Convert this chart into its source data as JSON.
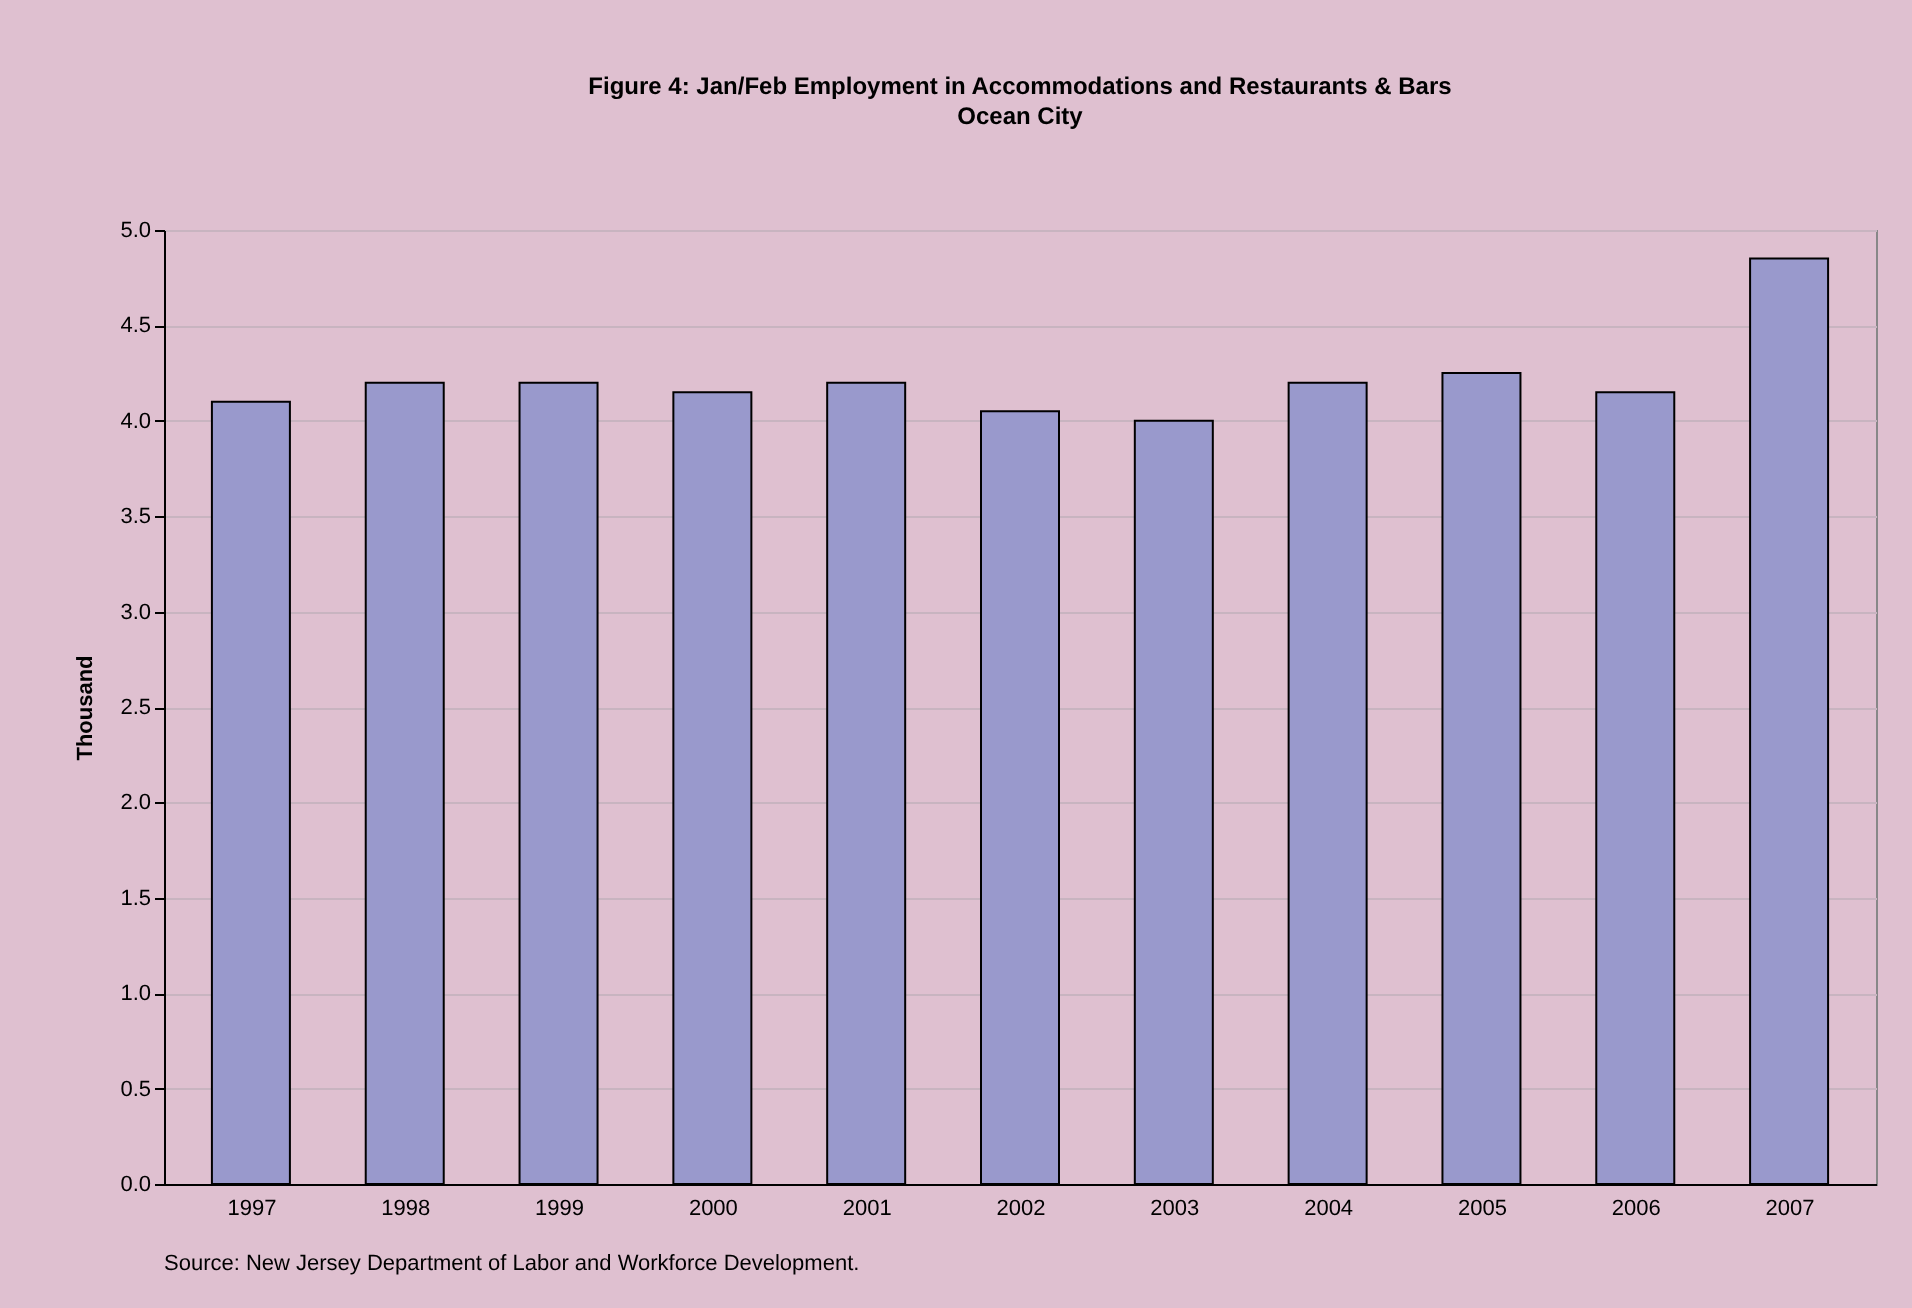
{
  "chart_data": {
    "type": "bar",
    "title": "Figure 4: Jan/Feb Employment in Accommodations and Restaurants & Bars",
    "subtitle": "Ocean City",
    "ylabel": "Thousand",
    "categories": [
      "1997",
      "1998",
      "1999",
      "2000",
      "2001",
      "2002",
      "2003",
      "2004",
      "2005",
      "2006",
      "2007"
    ],
    "values": [
      4.1,
      4.2,
      4.2,
      4.15,
      4.2,
      4.05,
      4.0,
      4.2,
      4.25,
      4.15,
      4.85
    ],
    "color": "#9999cc",
    "ylim": [
      0,
      5
    ],
    "yticks": [
      {
        "value": 0,
        "label": "0.0"
      },
      {
        "value": 0.5,
        "label": "0.5"
      },
      {
        "value": 1,
        "label": "1.0"
      },
      {
        "value": 1.5,
        "label": "1.5"
      },
      {
        "value": 2,
        "label": "2.0"
      },
      {
        "value": 2.5,
        "label": "2.5"
      },
      {
        "value": 3,
        "label": "3.0"
      },
      {
        "value": 3.5,
        "label": "3.5"
      },
      {
        "value": 4,
        "label": "4.0"
      },
      {
        "value": 4.5,
        "label": "4.5"
      },
      {
        "value": 5,
        "label": "5.0"
      }
    ],
    "grid": "y",
    "legend": false,
    "annotations": [
      "Source: New Jersey Department of Labor and Workforce Development."
    ]
  }
}
